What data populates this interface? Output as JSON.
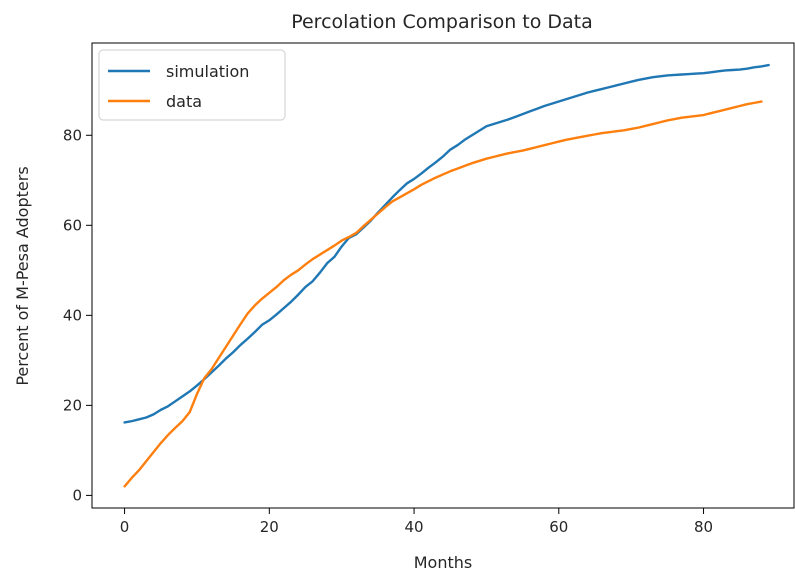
{
  "chart_data": {
    "type": "line",
    "title": "Percolation Comparison to Data",
    "xlabel": "Months",
    "ylabel": "Percent of M-Pesa Adopters",
    "xlim": [
      -4.5,
      92.5
    ],
    "ylim": [
      -2.8,
      100.5
    ],
    "xticks": [
      0,
      20,
      40,
      60,
      80
    ],
    "yticks": [
      0,
      20,
      40,
      60,
      80
    ],
    "grid": false,
    "legend": "upper left",
    "series": [
      {
        "name": "simulation",
        "color": "#1f77b4",
        "x": [
          0,
          1,
          2,
          3,
          4,
          5,
          6,
          7,
          8,
          9,
          10,
          11,
          12,
          13,
          14,
          15,
          16,
          17,
          18,
          19,
          20,
          21,
          22,
          23,
          24,
          25,
          26,
          27,
          28,
          29,
          30,
          31,
          32,
          33,
          34,
          35,
          36,
          37,
          38,
          39,
          40,
          41,
          42,
          43,
          44,
          45,
          46,
          47,
          48,
          49,
          50,
          51,
          52,
          53,
          54,
          55,
          56,
          57,
          58,
          59,
          60,
          61,
          62,
          63,
          64,
          65,
          66,
          67,
          68,
          69,
          70,
          71,
          72,
          73,
          74,
          75,
          76,
          77,
          78,
          79,
          80,
          81,
          82,
          83,
          84,
          85,
          86,
          87,
          88,
          89
        ],
        "y": [
          16.2,
          16.5,
          16.9,
          17.3,
          18.0,
          19.0,
          19.8,
          20.9,
          22.0,
          23.1,
          24.4,
          25.8,
          27.3,
          28.8,
          30.4,
          31.8,
          33.4,
          34.8,
          36.3,
          37.9,
          38.9,
          40.2,
          41.6,
          43.0,
          44.6,
          46.3,
          47.6,
          49.5,
          51.6,
          53.0,
          55.3,
          57.2,
          58.0,
          59.5,
          61.0,
          62.8,
          64.5,
          66.2,
          67.8,
          69.3,
          70.3,
          71.5,
          72.8,
          74.0,
          75.3,
          76.8,
          77.8,
          79.0,
          80.0,
          81.0,
          82.0,
          82.5,
          83.0,
          83.5,
          84.1,
          84.7,
          85.3,
          85.9,
          86.5,
          87.0,
          87.5,
          88.0,
          88.5,
          89.0,
          89.5,
          89.9,
          90.3,
          90.7,
          91.1,
          91.5,
          91.9,
          92.3,
          92.6,
          92.9,
          93.1,
          93.3,
          93.4,
          93.5,
          93.6,
          93.7,
          93.8,
          94.0,
          94.2,
          94.4,
          94.5,
          94.6,
          94.8,
          95.1,
          95.3,
          95.6
        ]
      },
      {
        "name": "data",
        "color": "#ff7f0e",
        "x": [
          0,
          1,
          2,
          3,
          4,
          5,
          6,
          7,
          8,
          9,
          10,
          11,
          12,
          13,
          14,
          15,
          16,
          17,
          18,
          19,
          20,
          21,
          22,
          23,
          24,
          25,
          26,
          27,
          28,
          29,
          30,
          31,
          32,
          33,
          34,
          35,
          36,
          37,
          38,
          39,
          40,
          41,
          42,
          43,
          44,
          45,
          46,
          47,
          48,
          49,
          50,
          51,
          52,
          53,
          54,
          55,
          56,
          57,
          58,
          59,
          60,
          61,
          62,
          63,
          64,
          65,
          66,
          67,
          68,
          69,
          70,
          71,
          72,
          73,
          74,
          75,
          76,
          77,
          78,
          79,
          80,
          81,
          82,
          83,
          84,
          85,
          86,
          87,
          88
        ],
        "y": [
          2.0,
          3.9,
          5.6,
          7.6,
          9.6,
          11.6,
          13.4,
          15.0,
          16.5,
          18.5,
          22.5,
          26.0,
          28.0,
          30.5,
          33.0,
          35.5,
          38.0,
          40.4,
          42.2,
          43.7,
          45.0,
          46.3,
          47.8,
          49.0,
          50.0,
          51.3,
          52.5,
          53.5,
          54.5,
          55.5,
          56.6,
          57.4,
          58.3,
          59.8,
          61.2,
          62.6,
          64.0,
          65.3,
          66.2,
          67.1,
          68.0,
          69.0,
          69.8,
          70.6,
          71.3,
          72.0,
          72.6,
          73.2,
          73.8,
          74.3,
          74.8,
          75.2,
          75.6,
          76.0,
          76.3,
          76.6,
          77.0,
          77.4,
          77.8,
          78.2,
          78.6,
          79.0,
          79.3,
          79.6,
          79.9,
          80.2,
          80.5,
          80.7,
          80.9,
          81.1,
          81.4,
          81.7,
          82.1,
          82.5,
          82.9,
          83.3,
          83.6,
          83.9,
          84.1,
          84.3,
          84.5,
          84.9,
          85.3,
          85.7,
          86.1,
          86.5,
          86.9,
          87.2,
          87.5
        ]
      }
    ]
  }
}
